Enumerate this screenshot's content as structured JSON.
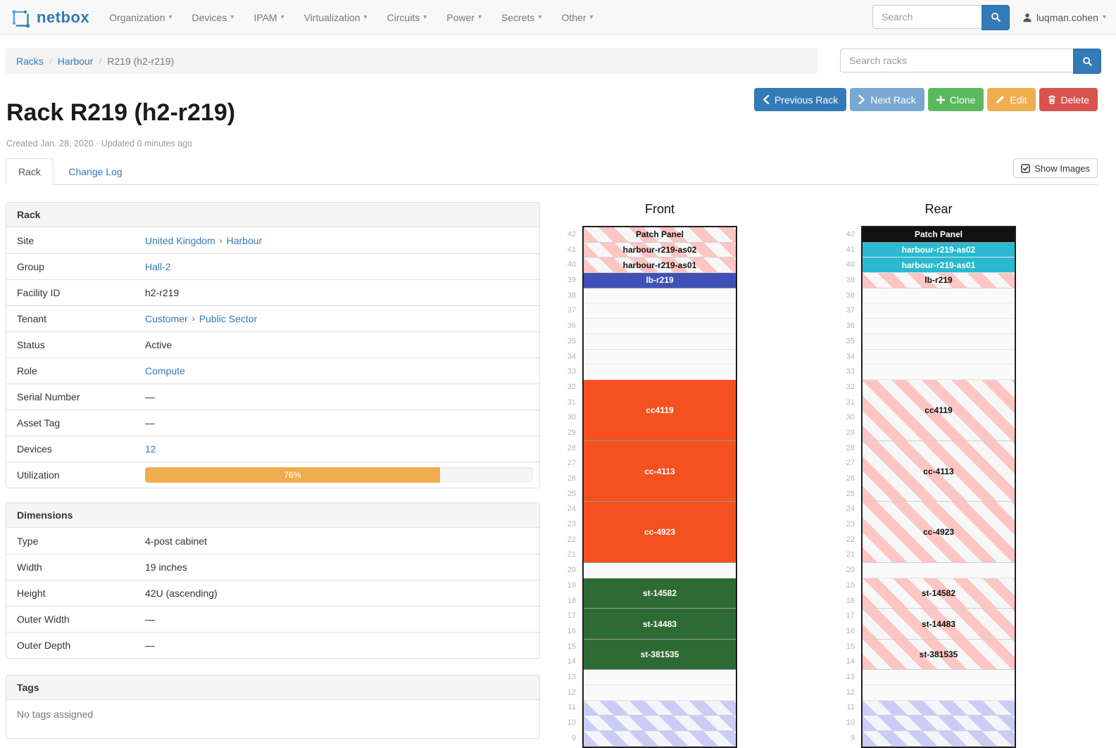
{
  "navbar": {
    "brand": "netbox",
    "menus": [
      "Organization",
      "Devices",
      "IPAM",
      "Virtualization",
      "Circuits",
      "Power",
      "Secrets",
      "Other"
    ],
    "search_placeholder": "Search",
    "user": "luqman.cohen"
  },
  "breadcrumb": [
    "Racks",
    "Harbour",
    "R219 (h2-r219)"
  ],
  "rack_search_placeholder": "Search racks",
  "actions": {
    "previous": "Previous Rack",
    "next": "Next Rack",
    "clone": "Clone",
    "edit": "Edit",
    "delete": "Delete"
  },
  "page": {
    "title": "Rack R219 (h2-r219)",
    "meta": "Created Jan. 28, 2020 · Updated 0 minutes ago"
  },
  "tabs": {
    "rack": "Rack",
    "changelog": "Change Log"
  },
  "show_images": "Show Images",
  "rack_panel": {
    "title": "Rack",
    "rows": [
      {
        "label": "Site",
        "parts": [
          {
            "text": "United Kingdom",
            "link": true
          },
          {
            "text": "›",
            "sep": true
          },
          {
            "text": "Harbour",
            "link": true
          }
        ]
      },
      {
        "label": "Group",
        "parts": [
          {
            "text": "Hall-2",
            "link": true
          }
        ]
      },
      {
        "label": "Facility ID",
        "parts": [
          {
            "text": "h2-r219"
          }
        ]
      },
      {
        "label": "Tenant",
        "parts": [
          {
            "text": "Customer",
            "link": true
          },
          {
            "text": "›",
            "sep": true
          },
          {
            "text": "Public Sector",
            "link": true
          }
        ]
      },
      {
        "label": "Status",
        "parts": [
          {
            "text": "Active"
          }
        ]
      },
      {
        "label": "Role",
        "parts": [
          {
            "text": "Compute",
            "link": true
          }
        ]
      },
      {
        "label": "Serial Number",
        "parts": [
          {
            "text": "—"
          }
        ]
      },
      {
        "label": "Asset Tag",
        "parts": [
          {
            "text": "—"
          }
        ]
      },
      {
        "label": "Devices",
        "parts": [
          {
            "text": "12",
            "link": true
          }
        ]
      },
      {
        "label": "Utilization",
        "progress": {
          "percent": 76,
          "label": "76%"
        }
      }
    ]
  },
  "dimensions_panel": {
    "title": "Dimensions",
    "rows": [
      {
        "label": "Type",
        "parts": [
          {
            "text": "4-post cabinet"
          }
        ]
      },
      {
        "label": "Width",
        "parts": [
          {
            "text": "19 inches"
          }
        ]
      },
      {
        "label": "Height",
        "parts": [
          {
            "text": "42U (ascending)"
          }
        ]
      },
      {
        "label": "Outer Width",
        "parts": [
          {
            "text": "—"
          }
        ]
      },
      {
        "label": "Outer Depth",
        "parts": [
          {
            "text": "—"
          }
        ]
      }
    ]
  },
  "tags_panel": {
    "title": "Tags",
    "empty_text": "No tags assigned"
  },
  "elevations": {
    "front": {
      "title": "Front",
      "top_unit": 42,
      "bottom_unit": 9,
      "slots": [
        {
          "label": "Patch Panel",
          "u": 1,
          "kind": "reserved-pink"
        },
        {
          "label": "harbour-r219-as02",
          "u": 1,
          "kind": "reserved-pink"
        },
        {
          "label": "harbour-r219-as01",
          "u": 1,
          "kind": "reserved-pink"
        },
        {
          "label": "lb-r219",
          "u": 1,
          "kind": "device-indigo"
        },
        {
          "label": "",
          "u": 1,
          "kind": "empty"
        },
        {
          "label": "",
          "u": 1,
          "kind": "empty"
        },
        {
          "label": "",
          "u": 1,
          "kind": "empty"
        },
        {
          "label": "",
          "u": 1,
          "kind": "empty"
        },
        {
          "label": "",
          "u": 1,
          "kind": "empty"
        },
        {
          "label": "",
          "u": 1,
          "kind": "empty"
        },
        {
          "label": "cc4119",
          "u": 4,
          "kind": "device-orange"
        },
        {
          "label": "cc-4113",
          "u": 4,
          "kind": "device-orange"
        },
        {
          "label": "cc-4923",
          "u": 4,
          "kind": "device-orange"
        },
        {
          "label": "",
          "u": 1,
          "kind": "empty"
        },
        {
          "label": "st-14582",
          "u": 2,
          "kind": "device-green"
        },
        {
          "label": "st-14483",
          "u": 2,
          "kind": "device-green"
        },
        {
          "label": "st-381535",
          "u": 2,
          "kind": "device-green"
        },
        {
          "label": "",
          "u": 1,
          "kind": "empty"
        },
        {
          "label": "",
          "u": 1,
          "kind": "empty"
        },
        {
          "label": "",
          "u": 1,
          "kind": "reserved-blue"
        },
        {
          "label": "",
          "u": 1,
          "kind": "reserved-blue"
        },
        {
          "label": "",
          "u": 1,
          "kind": "reserved-blue"
        }
      ]
    },
    "rear": {
      "title": "Rear",
      "top_unit": 42,
      "bottom_unit": 9,
      "slots": [
        {
          "label": "Patch Panel",
          "u": 1,
          "kind": "device-black"
        },
        {
          "label": "harbour-r219-as02",
          "u": 1,
          "kind": "device-cyan"
        },
        {
          "label": "harbour-r219-as01",
          "u": 1,
          "kind": "device-cyan"
        },
        {
          "label": "lb-r219",
          "u": 1,
          "kind": "reserved-pink"
        },
        {
          "label": "",
          "u": 1,
          "kind": "empty"
        },
        {
          "label": "",
          "u": 1,
          "kind": "empty"
        },
        {
          "label": "",
          "u": 1,
          "kind": "empty"
        },
        {
          "label": "",
          "u": 1,
          "kind": "empty"
        },
        {
          "label": "",
          "u": 1,
          "kind": "empty"
        },
        {
          "label": "",
          "u": 1,
          "kind": "empty"
        },
        {
          "label": "cc4119",
          "u": 4,
          "kind": "reserved-pink"
        },
        {
          "label": "cc-4113",
          "u": 4,
          "kind": "reserved-pink"
        },
        {
          "label": "cc-4923",
          "u": 4,
          "kind": "reserved-pink"
        },
        {
          "label": "",
          "u": 1,
          "kind": "empty"
        },
        {
          "label": "st-14582",
          "u": 2,
          "kind": "reserved-pink"
        },
        {
          "label": "st-14483",
          "u": 2,
          "kind": "reserved-pink"
        },
        {
          "label": "st-381535",
          "u": 2,
          "kind": "reserved-pink"
        },
        {
          "label": "",
          "u": 1,
          "kind": "empty"
        },
        {
          "label": "",
          "u": 1,
          "kind": "empty"
        },
        {
          "label": "",
          "u": 1,
          "kind": "reserved-blue"
        },
        {
          "label": "",
          "u": 1,
          "kind": "reserved-blue"
        },
        {
          "label": "",
          "u": 1,
          "kind": "reserved-blue"
        }
      ]
    }
  },
  "colors": {
    "accent": "#337ab7",
    "btn_next": "#79a8d2",
    "btn_clone": "#5cb85c",
    "btn_edit": "#f0ad4e",
    "btn_delete": "#d9534f",
    "utilization_bar": "#f0ad4e",
    "device_orange": "#f4511e",
    "device_green": "#2e6b34",
    "device_indigo": "#3f51b5",
    "device_cyan": "#29b9d0",
    "device_black": "#111111",
    "stripe_pink": "#fdc5c3",
    "stripe_blue": "#c9cdf6"
  }
}
